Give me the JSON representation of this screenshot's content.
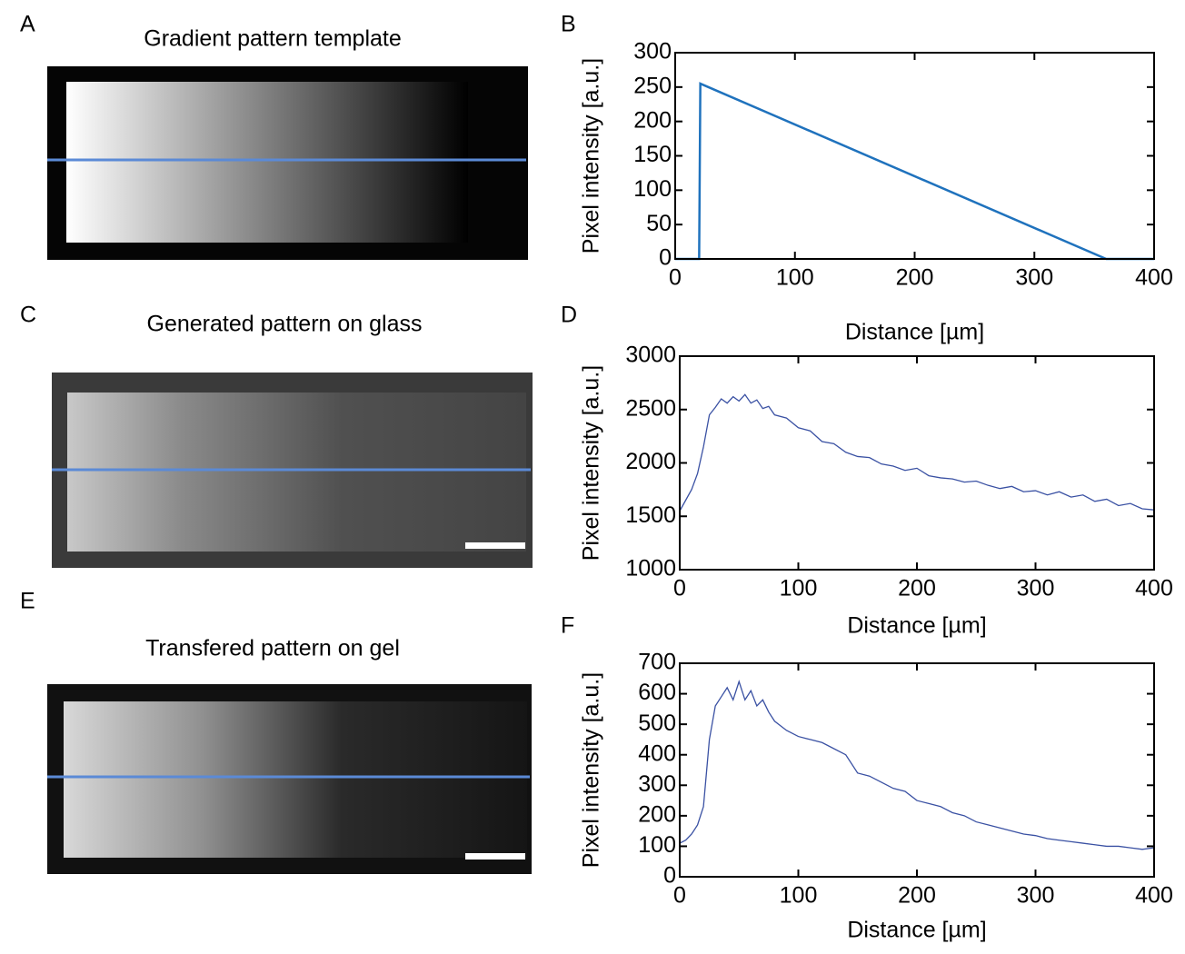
{
  "images": [
    {
      "label": "A",
      "title": "Gradient pattern template"
    },
    {
      "label": "C",
      "title": "Generated pattern on glass"
    },
    {
      "label": "E",
      "title": "Transfered pattern on gel"
    }
  ],
  "chart_data": [
    {
      "type": "line",
      "panel_label": "B",
      "x_label": "Distance [µm]",
      "y_label": "Pixel intensity [a.u.]",
      "xlim": [
        0,
        400
      ],
      "ylim": [
        0,
        300
      ],
      "xticks": [
        0,
        100,
        200,
        300,
        400
      ],
      "yticks": [
        0,
        50,
        100,
        150,
        200,
        250,
        300
      ],
      "series": [
        {
          "color": "#1f72bd",
          "x": [
            0,
            20,
            20,
            21,
            360,
            400
          ],
          "values": [
            0,
            0,
            0,
            255,
            0,
            0
          ]
        }
      ]
    },
    {
      "type": "line",
      "panel_label": "D",
      "x_label": "Distance [µm]",
      "y_label": "Pixel intensity [a.u.]",
      "xlim": [
        0,
        400
      ],
      "ylim": [
        1000,
        3000
      ],
      "xticks": [
        0,
        100,
        200,
        300,
        400
      ],
      "yticks": [
        1000,
        1500,
        2000,
        2500,
        3000
      ],
      "series": [
        {
          "color": "#3a51a3",
          "x": [
            0,
            5,
            10,
            15,
            20,
            25,
            30,
            35,
            40,
            45,
            50,
            55,
            60,
            65,
            70,
            75,
            80,
            90,
            100,
            110,
            120,
            130,
            140,
            150,
            160,
            170,
            180,
            190,
            200,
            210,
            220,
            230,
            240,
            250,
            260,
            270,
            280,
            290,
            300,
            310,
            320,
            330,
            340,
            350,
            360,
            370,
            380,
            390,
            400
          ],
          "values": [
            1550,
            1650,
            1750,
            1900,
            2150,
            2450,
            2520,
            2600,
            2560,
            2620,
            2580,
            2640,
            2560,
            2590,
            2510,
            2530,
            2450,
            2420,
            2330,
            2300,
            2200,
            2180,
            2100,
            2060,
            2050,
            1990,
            1970,
            1930,
            1950,
            1880,
            1860,
            1850,
            1820,
            1830,
            1790,
            1760,
            1780,
            1730,
            1740,
            1700,
            1730,
            1680,
            1700,
            1640,
            1660,
            1600,
            1620,
            1570,
            1560
          ]
        }
      ]
    },
    {
      "type": "line",
      "panel_label": "F",
      "x_label": "Distance [µm]",
      "y_label": "Pixel intensity [a.u.]",
      "xlim": [
        0,
        400
      ],
      "ylim": [
        0,
        700
      ],
      "xticks": [
        0,
        100,
        200,
        300,
        400
      ],
      "yticks": [
        0,
        100,
        200,
        300,
        400,
        500,
        600,
        700
      ],
      "series": [
        {
          "color": "#3a51a3",
          "x": [
            0,
            5,
            10,
            15,
            20,
            25,
            30,
            35,
            40,
            45,
            50,
            55,
            60,
            65,
            70,
            75,
            80,
            90,
            100,
            110,
            120,
            130,
            140,
            150,
            160,
            170,
            180,
            190,
            200,
            210,
            220,
            230,
            240,
            250,
            260,
            270,
            280,
            290,
            300,
            310,
            320,
            330,
            340,
            350,
            360,
            370,
            380,
            390,
            400
          ],
          "values": [
            110,
            120,
            140,
            170,
            230,
            450,
            560,
            590,
            620,
            580,
            640,
            580,
            610,
            560,
            580,
            540,
            510,
            480,
            460,
            450,
            440,
            420,
            400,
            340,
            330,
            310,
            290,
            280,
            250,
            240,
            230,
            210,
            200,
            180,
            170,
            160,
            150,
            140,
            135,
            125,
            120,
            115,
            110,
            105,
            100,
            100,
            95,
            90,
            95
          ]
        }
      ]
    }
  ]
}
